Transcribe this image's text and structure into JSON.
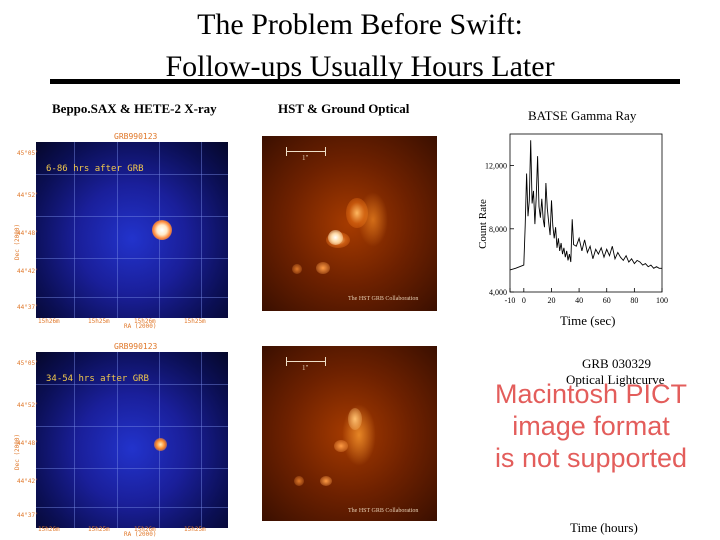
{
  "slide": {
    "title_line1": "The Problem Before Swift:",
    "title_line2": "Follow-ups Usually Hours Later"
  },
  "columns": {
    "xray_label": "Beppo.SAX & HETE-2 X-ray",
    "optical_label": "HST & Ground Optical",
    "gamma_label": "BATSE Gamma Ray"
  },
  "xray_top": {
    "grb_label": "GRB990123",
    "epoch": "6-86 hrs after GRB",
    "ylabel": "Dec (2000)",
    "xlabel": "RA (2000)",
    "yticks": [
      "45°05'",
      "44°52'",
      "44°48'",
      "44°42'",
      "44°37'"
    ],
    "xticks": [
      "15h26m",
      "15h25m",
      "15h26m",
      "15h25m"
    ]
  },
  "xray_bottom": {
    "grb_label": "GRB990123",
    "epoch": "34-54 hrs after GRB",
    "ylabel": "Dec (2000)",
    "xlabel": "RA (2000)",
    "yticks": [
      "45°05'",
      "44°52'",
      "44°48'",
      "44°42'",
      "44°37'"
    ],
    "xticks": [
      "15h26m",
      "15h25m",
      "15h26m",
      "15h25m"
    ]
  },
  "optical_top": {
    "scale": "1\"",
    "credit": "The HST GRB Collaboration"
  },
  "optical_bottom": {
    "scale": "1\"",
    "credit": "The HST GRB Collaboration"
  },
  "gamma_chart": {
    "ylabel": "Count Rate",
    "xlabel": "Time (sec)",
    "yticks": [
      "12,000",
      "8,000",
      "4,000"
    ],
    "xticks": [
      "-10",
      "0",
      "20",
      "40",
      "60",
      "80",
      "100"
    ]
  },
  "optical_lightcurve": {
    "title_line1": "GRB 030329",
    "title_line2": "Optical Lightcurve",
    "placeholder_line1": "Macintosh PICT",
    "placeholder_line2": "image format",
    "placeholder_line3": "is not supported",
    "xlabel": "Time (hours)"
  },
  "chart_data": {
    "type": "line",
    "title": "BATSE Gamma Ray",
    "xlabel": "Time (sec)",
    "ylabel": "Count Rate",
    "xlim": [
      -10,
      100
    ],
    "ylim": [
      4000,
      14000
    ],
    "series": [
      {
        "x": [
          -10,
          -6,
          -3,
          0,
          1,
          2,
          3,
          4,
          5,
          6,
          7,
          8,
          9,
          10,
          11,
          12,
          13,
          14,
          15,
          16,
          17,
          18,
          19,
          20,
          21,
          22,
          23,
          24,
          25,
          26,
          27,
          28,
          29,
          30,
          31,
          32,
          33,
          34,
          35,
          36,
          38,
          40,
          42,
          44,
          46,
          48,
          50,
          52,
          54,
          56,
          58,
          60,
          62,
          64,
          66,
          68,
          70,
          72,
          74,
          76,
          78,
          80,
          82,
          84,
          86,
          88,
          90,
          92,
          94,
          96,
          98,
          100
        ],
        "values": [
          5400,
          5500,
          5600,
          5700,
          8200,
          11500,
          8800,
          9800,
          13600,
          9600,
          10400,
          8300,
          10100,
          12600,
          9400,
          8700,
          9900,
          8600,
          8100,
          10900,
          9300,
          8400,
          7600,
          9800,
          8200,
          7400,
          8100,
          6800,
          7400,
          6600,
          7100,
          6400,
          6800,
          6200,
          6600,
          6000,
          6400,
          5900,
          8600,
          7000,
          6900,
          7400,
          6600,
          7300,
          6500,
          6900,
          6100,
          6700,
          6400,
          6800,
          6200,
          6700,
          6300,
          6900,
          6100,
          6500,
          6200,
          6000,
          6300,
          5900,
          6100,
          5800,
          6000,
          5900,
          5700,
          5800,
          5600,
          5700,
          5500,
          5600,
          5500,
          5500
        ]
      }
    ]
  }
}
